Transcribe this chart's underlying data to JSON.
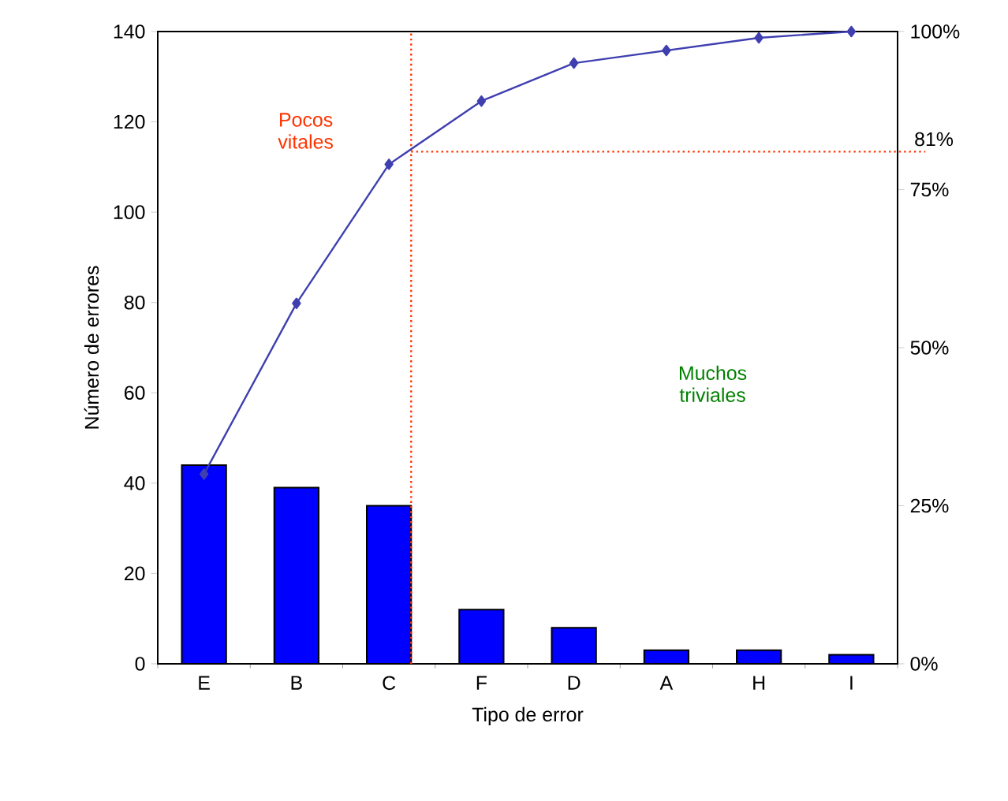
{
  "chart_data": {
    "type": "bar",
    "xlabel": "Tipo de error",
    "ylabel": "Número de errores",
    "categories": [
      "E",
      "B",
      "C",
      "F",
      "D",
      "A",
      "H",
      "I"
    ],
    "series": [
      {
        "color": "#0000ff",
        "values": [
          44,
          39,
          35,
          12,
          8,
          3,
          3,
          2
        ]
      },
      {
        "type": "line",
        "axis": "y2",
        "color": "#3f3fb0",
        "values": [
          30,
          57,
          79,
          89,
          95,
          97,
          99,
          100
        ]
      }
    ],
    "ylim": [
      0,
      140
    ],
    "yticks": [
      0,
      20,
      40,
      60,
      80,
      100,
      120,
      140
    ],
    "y2lim": [
      0,
      100
    ],
    "y2ticks": [
      {
        "value": 0,
        "label": "0%"
      },
      {
        "value": 25,
        "label": "25%"
      },
      {
        "value": 50,
        "label": "50%"
      },
      {
        "value": 75,
        "label": "75%"
      },
      {
        "value": 100,
        "label": "100%"
      }
    ],
    "ref_lines": [
      {
        "axis": "x",
        "value": "C",
        "color": "#ff3300",
        "line_style": "dotted"
      },
      {
        "axis": "y2",
        "value": 81,
        "label": "81%",
        "color": "#ff3300",
        "line_style": "dotted"
      }
    ],
    "annotations": [
      "Pocos vitales",
      "Muchos triviales"
    ],
    "marker": "diamond"
  }
}
